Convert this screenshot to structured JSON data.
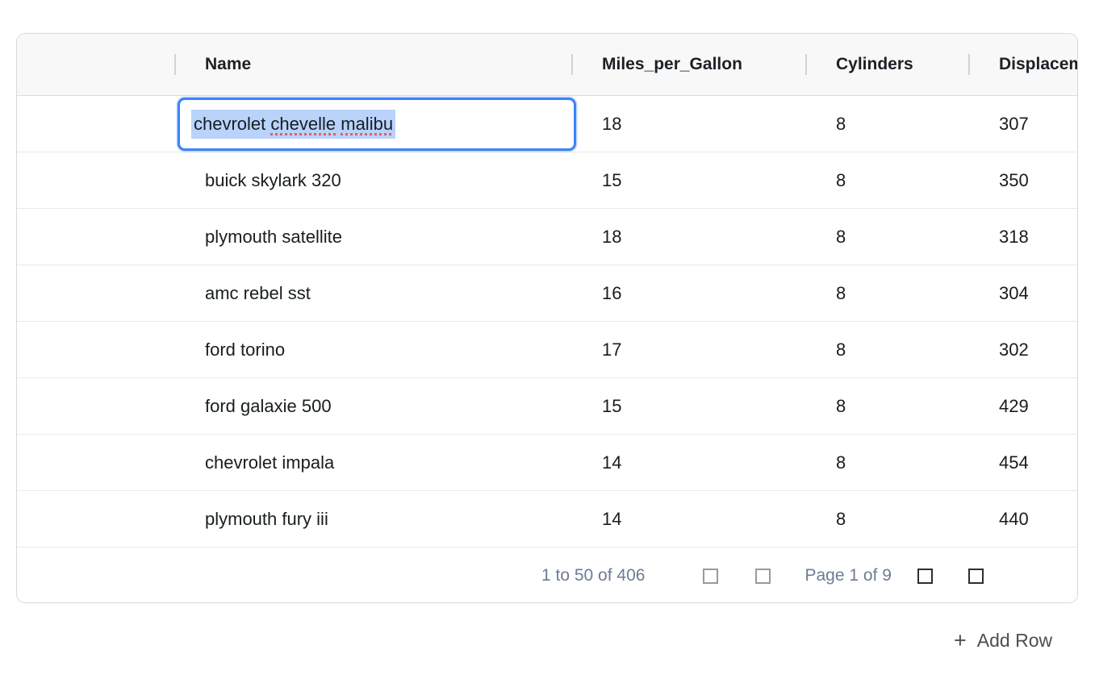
{
  "table": {
    "columns": [
      {
        "key": "blank",
        "label": ""
      },
      {
        "key": "name",
        "label": "Name"
      },
      {
        "key": "mpg",
        "label": "Miles_per_Gallon"
      },
      {
        "key": "cylinders",
        "label": "Cylinders"
      },
      {
        "key": "displacement",
        "label": "Displacement"
      }
    ],
    "rows": [
      {
        "name": "chevrolet chevelle malibu",
        "mpg": "18",
        "cylinders": "8",
        "displacement": "307"
      },
      {
        "name": "buick skylark 320",
        "mpg": "15",
        "cylinders": "8",
        "displacement": "350"
      },
      {
        "name": "plymouth satellite",
        "mpg": "18",
        "cylinders": "8",
        "displacement": "318"
      },
      {
        "name": "amc rebel sst",
        "mpg": "16",
        "cylinders": "8",
        "displacement": "304"
      },
      {
        "name": "ford torino",
        "mpg": "17",
        "cylinders": "8",
        "displacement": "302"
      },
      {
        "name": "ford galaxie 500",
        "mpg": "15",
        "cylinders": "8",
        "displacement": "429"
      },
      {
        "name": "chevrolet impala",
        "mpg": "14",
        "cylinders": "8",
        "displacement": "454"
      },
      {
        "name": "plymouth fury iii",
        "mpg": "14",
        "cylinders": "8",
        "displacement": "440"
      }
    ]
  },
  "edit_cell": {
    "row_index": 0,
    "column": "Name",
    "value": "chevrolet chevelle malibu",
    "text_selected": true,
    "words": [
      {
        "text": "chevrolet",
        "misspelled": false
      },
      {
        "text": "chevelle",
        "misspelled": true
      },
      {
        "text": "malibu",
        "misspelled": true
      }
    ]
  },
  "pagination": {
    "summary": "1 to 50 of 406",
    "page_status": "Page 1 of 9",
    "buttons": [
      {
        "icon": "first-page-icon",
        "enabled": false
      },
      {
        "icon": "previous-page-icon",
        "enabled": false
      },
      {
        "icon": "next-page-icon",
        "enabled": true
      },
      {
        "icon": "last-page-icon",
        "enabled": true
      }
    ]
  },
  "actions": {
    "add_row_icon": "+",
    "add_row_label": "Add Row"
  },
  "colors": {
    "accent_blue": "#3c82f6",
    "selection_blue": "#b9d3fb",
    "spellcheck_red": "#e06262",
    "header_bg": "#f8f8f8",
    "grid_border": "#d8d8d8",
    "row_border": "#e9e9e9",
    "footer_text": "#6e7b96",
    "cell_text": "#181d1f"
  }
}
